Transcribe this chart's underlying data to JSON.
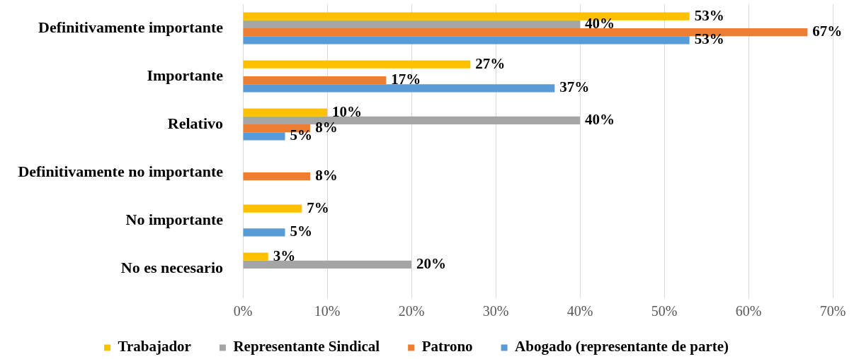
{
  "chart_data": {
    "type": "bar",
    "orientation": "horizontal",
    "categories": [
      "Definitivamente importante",
      "Importante",
      "Relativo",
      "Definitivamente no importante",
      "No importante",
      "No es necesario"
    ],
    "series": [
      {
        "name": "Trabajador",
        "color": "#ffc000",
        "values": [
          53,
          27,
          10,
          null,
          7,
          3
        ],
        "value_labels": [
          "53%",
          "27%",
          "10%",
          null,
          "7%",
          "3%"
        ]
      },
      {
        "name": "Representante Sindical",
        "color": "#a5a5a5",
        "values": [
          40,
          null,
          40,
          null,
          null,
          20
        ],
        "value_labels": [
          "40%",
          null,
          "40%",
          null,
          null,
          "20%"
        ]
      },
      {
        "name": "Patrono",
        "color": "#ed7d31",
        "values": [
          67,
          17,
          8,
          8,
          null,
          null
        ],
        "value_labels": [
          "67%",
          "17%",
          "8%",
          "8%",
          null,
          null
        ]
      },
      {
        "name": "Abogado (representante de parte)",
        "color": "#5b9bd5",
        "values": [
          53,
          37,
          5,
          null,
          5,
          null
        ],
        "value_labels": [
          "53%",
          "37%",
          "5%",
          null,
          "5%",
          null
        ]
      }
    ],
    "xlim": [
      0,
      70
    ],
    "xticks": [
      {
        "value": 0,
        "label": "0%"
      },
      {
        "value": 10,
        "label": "10%"
      },
      {
        "value": 20,
        "label": "20%"
      },
      {
        "value": 30,
        "label": "30%"
      },
      {
        "value": 40,
        "label": "40%"
      },
      {
        "value": 50,
        "label": "50%"
      },
      {
        "value": 60,
        "label": "60%"
      },
      {
        "value": 70,
        "label": "70%"
      }
    ],
    "grid": "x",
    "legend": "bottom"
  }
}
